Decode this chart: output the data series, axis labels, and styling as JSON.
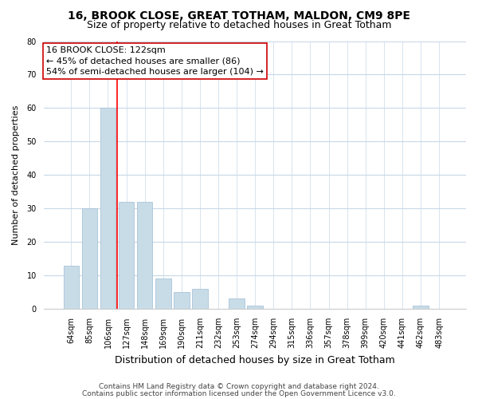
{
  "title": "16, BROOK CLOSE, GREAT TOTHAM, MALDON, CM9 8PE",
  "subtitle": "Size of property relative to detached houses in Great Totham",
  "xlabel": "Distribution of detached houses by size in Great Totham",
  "ylabel": "Number of detached properties",
  "bar_color": "#c8dce8",
  "bar_edge_color": "#a8c4d8",
  "categories": [
    "64sqm",
    "85sqm",
    "106sqm",
    "127sqm",
    "148sqm",
    "169sqm",
    "190sqm",
    "211sqm",
    "232sqm",
    "253sqm",
    "274sqm",
    "294sqm",
    "315sqm",
    "336sqm",
    "357sqm",
    "378sqm",
    "399sqm",
    "420sqm",
    "441sqm",
    "462sqm",
    "483sqm"
  ],
  "bar_heights": [
    13,
    30,
    60,
    32,
    32,
    9,
    5,
    6,
    0,
    3,
    1,
    0,
    0,
    0,
    0,
    0,
    0,
    0,
    0,
    1,
    0
  ],
  "ylim": [
    0,
    80
  ],
  "red_line_index": 2.5,
  "annotation_text": "16 BROOK CLOSE: 122sqm\n← 45% of detached houses are smaller (86)\n54% of semi-detached houses are larger (104) →",
  "footer_line1": "Contains HM Land Registry data © Crown copyright and database right 2024.",
  "footer_line2": "Contains public sector information licensed under the Open Government Licence v3.0.",
  "background_color": "#ffffff",
  "grid_color": "#c8d8e8",
  "title_fontsize": 10,
  "subtitle_fontsize": 9,
  "xlabel_fontsize": 9,
  "ylabel_fontsize": 8,
  "tick_fontsize": 7,
  "annotation_fontsize": 8,
  "footer_fontsize": 6.5
}
